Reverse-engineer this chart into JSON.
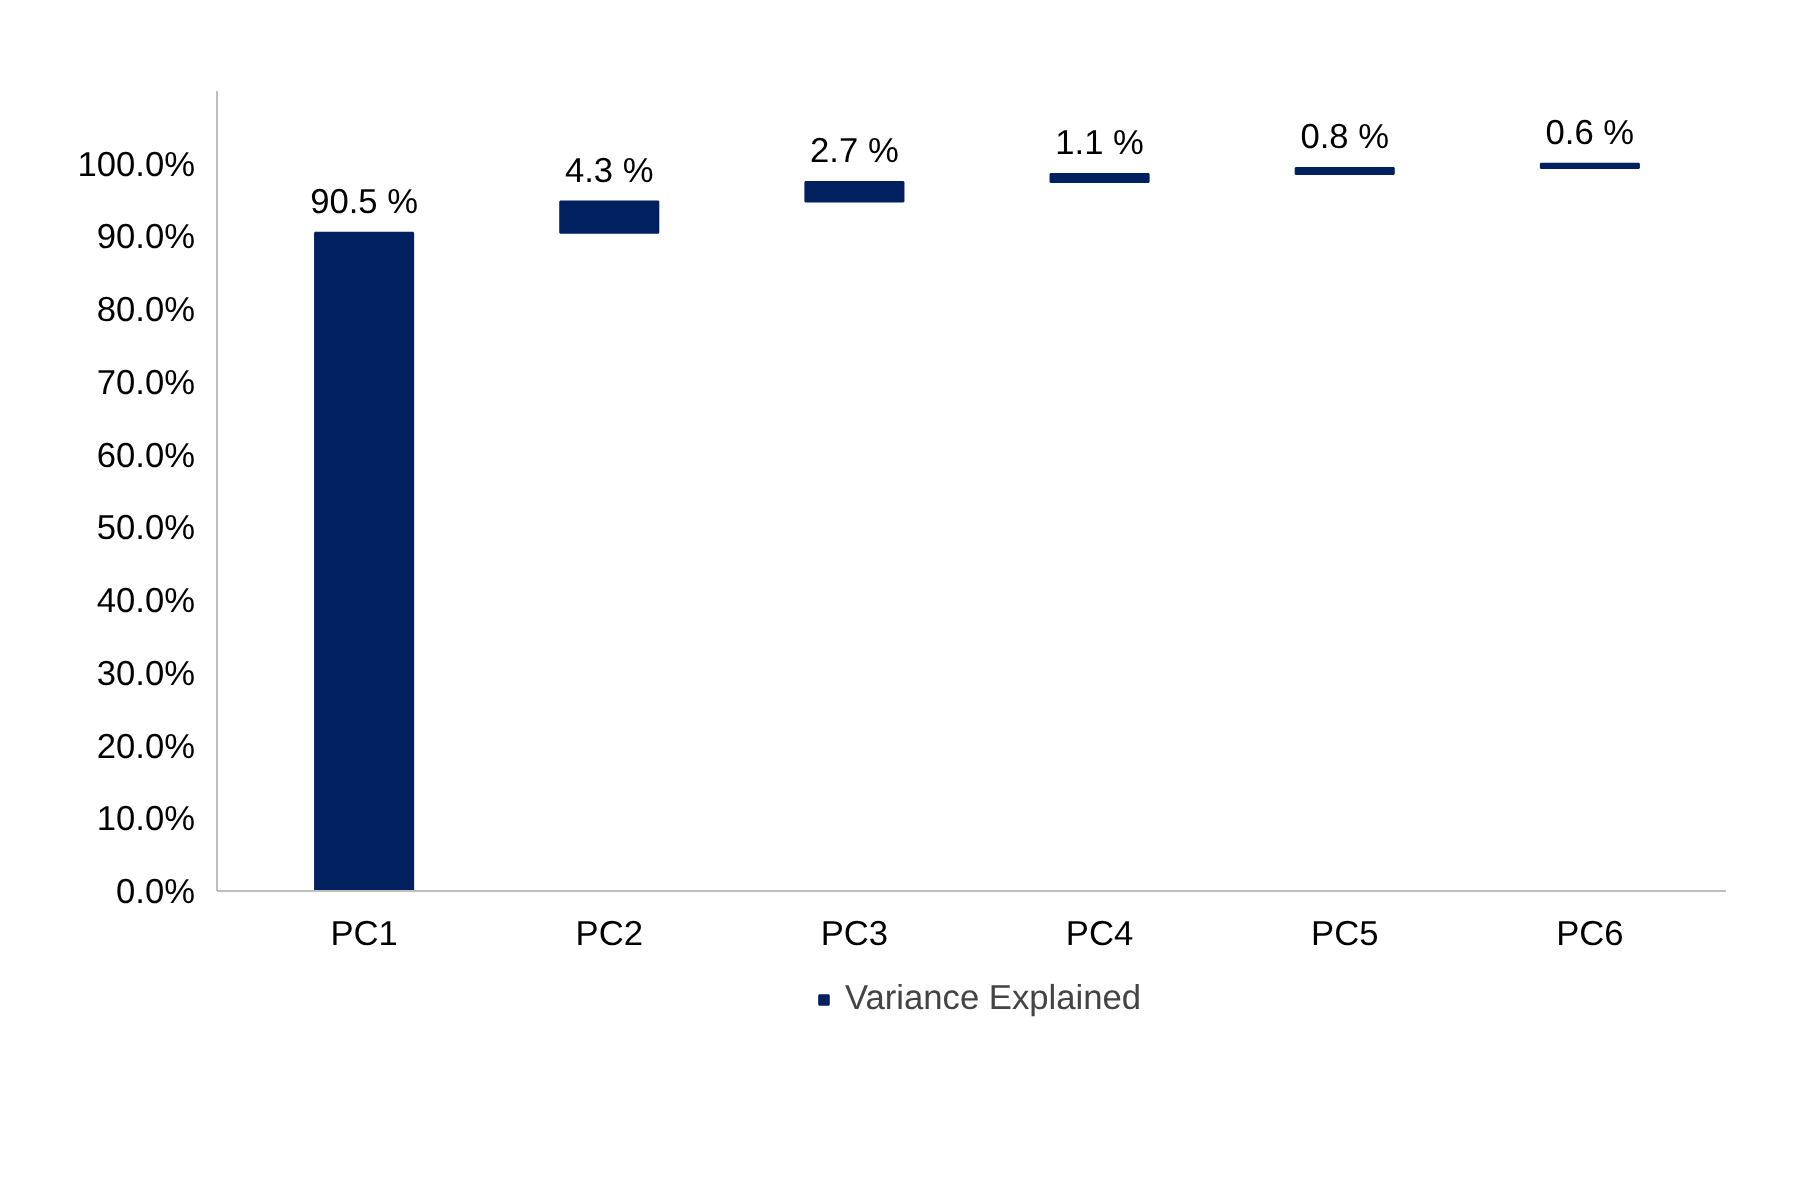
{
  "chart_data": {
    "type": "bar",
    "categories": [
      "PC1",
      "PC2",
      "PC3",
      "PC4",
      "PC5",
      "PC6"
    ],
    "series": [
      {
        "name": "Variance Explained",
        "color": "#002060",
        "values": [
          90.5,
          4.3,
          2.7,
          1.1,
          0.8,
          0.6
        ],
        "base": [
          0,
          90.5,
          94.8,
          97.5,
          98.6,
          99.4
        ],
        "value_labels": [
          "90.5 %",
          "4.3 %",
          "2.7 %",
          "1.1 %",
          "0.8 %",
          "0.6 %"
        ]
      }
    ],
    "ylim": [
      0,
      110
    ],
    "yticks": [
      {
        "value": 0,
        "label": "0.0%"
      },
      {
        "value": 10,
        "label": "10.0%"
      },
      {
        "value": 20,
        "label": "20.0%"
      },
      {
        "value": 30,
        "label": "30.0%"
      },
      {
        "value": 40,
        "label": "40.0%"
      },
      {
        "value": 50,
        "label": "50.0%"
      },
      {
        "value": 60,
        "label": "60.0%"
      },
      {
        "value": 70,
        "label": "70.0%"
      },
      {
        "value": 80,
        "label": "80.0%"
      },
      {
        "value": 90,
        "label": "90.0%"
      },
      {
        "value": 100,
        "label": "100.0%"
      }
    ],
    "grid": false,
    "legend": "bottom"
  }
}
